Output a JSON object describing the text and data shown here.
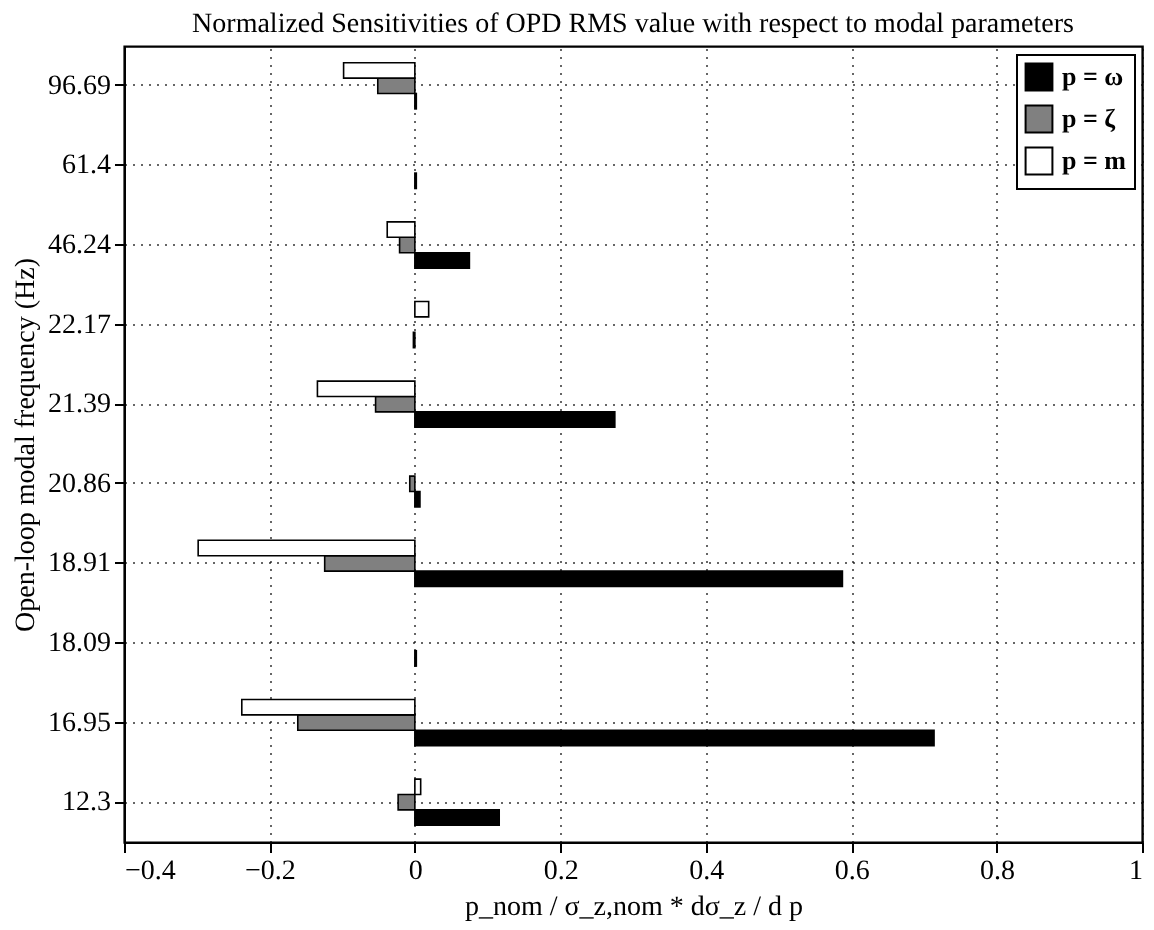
{
  "chart_data": {
    "type": "bar",
    "orientation": "horizontal",
    "title": "Normalized Sensitivities of OPD RMS value with respect to modal parameters",
    "xlabel": "p_nom / σ_z,nom * dσ_z / d p",
    "ylabel": "Open-loop modal frequency (Hz)",
    "categories": [
      "96.69",
      "61.4",
      "46.24",
      "22.17",
      "21.39",
      "20.86",
      "18.91",
      "18.09",
      "16.95",
      "12.3"
    ],
    "series": [
      {
        "name": "p = ω",
        "color": "#000000",
        "values": [
          0.002,
          0.002,
          0.075,
          -0.002,
          0.275,
          0.007,
          0.588,
          0.002,
          0.714,
          0.116
        ]
      },
      {
        "name": "p = ζ",
        "color": "#808080",
        "values": [
          -0.051,
          0.0,
          -0.021,
          0.0,
          -0.054,
          -0.007,
          -0.124,
          0.0,
          -0.161,
          -0.023
        ]
      },
      {
        "name": "p = m",
        "color": "#ffffff",
        "values": [
          -0.098,
          0.0,
          -0.038,
          0.019,
          -0.134,
          null,
          -0.298,
          0.0,
          -0.238,
          0.008
        ]
      }
    ],
    "xlim": [
      -0.4,
      1.0
    ],
    "xticks": [
      -0.4,
      -0.2,
      0,
      0.2,
      0.4,
      0.6,
      0.8,
      1
    ],
    "grid": true,
    "legend": "top right"
  }
}
